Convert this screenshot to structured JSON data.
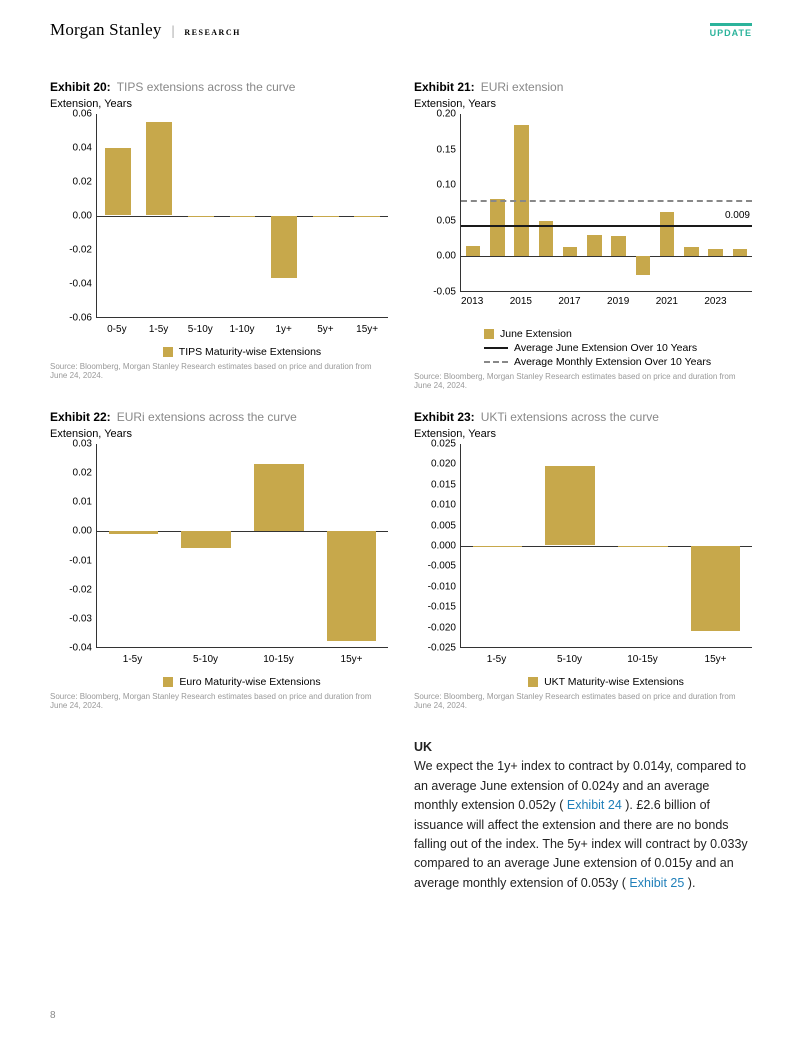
{
  "header": {
    "brand": "Morgan Stanley",
    "sub": "RESEARCH",
    "badge": "UPDATE"
  },
  "colors": {
    "bar": "#c7a84b",
    "axis": "#333333",
    "avg_line": "#1a1a1a",
    "avg_dash": "#888888",
    "accent": "#2bb39b",
    "link": "#1f7fb9",
    "source": "#999999"
  },
  "exhibits": {
    "e20": {
      "num": "Exhibit 20:",
      "title": "TIPS extensions across the curve",
      "ylabel": "Extension, Years",
      "ylim": [
        -0.06,
        0.06
      ],
      "ystep": 0.02,
      "categories": [
        "0-5y",
        "1-5y",
        "5-10y",
        "1-10y",
        "1y+",
        "5y+",
        "15y+"
      ],
      "values": [
        0.04,
        0.055,
        0.0,
        0.0,
        -0.037,
        0.0,
        0.0
      ],
      "legend": "TIPS Maturity-wise Extensions",
      "source": "Source: Bloomberg, Morgan Stanley Research estimates based on price and duration from June 24, 2024."
    },
    "e21": {
      "num": "Exhibit 21:",
      "title": "EURi extension",
      "ylabel": "Extension, Years",
      "ylim": [
        -0.05,
        0.2
      ],
      "ystep": 0.05,
      "categories": [
        "2013",
        "2014",
        "2015",
        "2016",
        "2017",
        "2018",
        "2019",
        "2020",
        "2021",
        "2022",
        "2023",
        "2024"
      ],
      "xshow": [
        "2013",
        "",
        "2015",
        "",
        "2017",
        "",
        "2019",
        "",
        "2021",
        "",
        "2023",
        ""
      ],
      "values": [
        0.014,
        0.08,
        0.185,
        0.049,
        0.012,
        0.029,
        0.028,
        -0.028,
        0.062,
        0.012,
        0.01,
        0.009
      ],
      "avg_june": 0.043,
      "avg_monthly": 0.078,
      "annotation": "0.009",
      "legend1": "June Extension",
      "legend2": "Average June Extension Over 10 Years",
      "legend3": "Average Monthly Extension Over 10 Years",
      "source": "Source: Bloomberg, Morgan Stanley Research estimates based on price and duration from June 24, 2024."
    },
    "e22": {
      "num": "Exhibit 22:",
      "title": "EURi extensions across the curve",
      "ylabel": "Extension, Years",
      "ylim": [
        -0.04,
        0.03
      ],
      "ystep": 0.01,
      "categories": [
        "1-5y",
        "5-10y",
        "10-15y",
        "15y+"
      ],
      "values": [
        -0.001,
        -0.006,
        0.023,
        -0.038
      ],
      "legend": "Euro Maturity-wise Extensions",
      "source": "Source: Bloomberg, Morgan Stanley Research estimates based on price and duration from June 24, 2024."
    },
    "e23": {
      "num": "Exhibit 23:",
      "title": "UKTi extensions across the curve",
      "ylabel": "Extension, Years",
      "ylim": [
        -0.025,
        0.025
      ],
      "ystep": 0.005,
      "categories": [
        "1-5y",
        "5-10y",
        "10-15y",
        "15y+"
      ],
      "values": [
        0.0,
        0.0195,
        0.0,
        -0.021
      ],
      "legend": "UKT Maturity-wise Extensions",
      "source": "Source: Bloomberg, Morgan Stanley Research estimates based on price and duration from June 24, 2024."
    }
  },
  "body": {
    "heading": "UK",
    "p1a": "We expect the 1y+ index to contract by 0.014y, compared to an average June extension of 0.024y and an average monthly extension 0.052y ( ",
    "link1": "Exhibit 24",
    "p1b": " ). £2.6 billion of issuance will affect the extension and there are no bonds falling out of the index. The 5y+ index will contract by 0.033y compared to an average June extension of 0.015y and an average monthly extension of 0.053y ( ",
    "link2": "Exhibit 25",
    "p1c": " )."
  },
  "page_number": "8"
}
